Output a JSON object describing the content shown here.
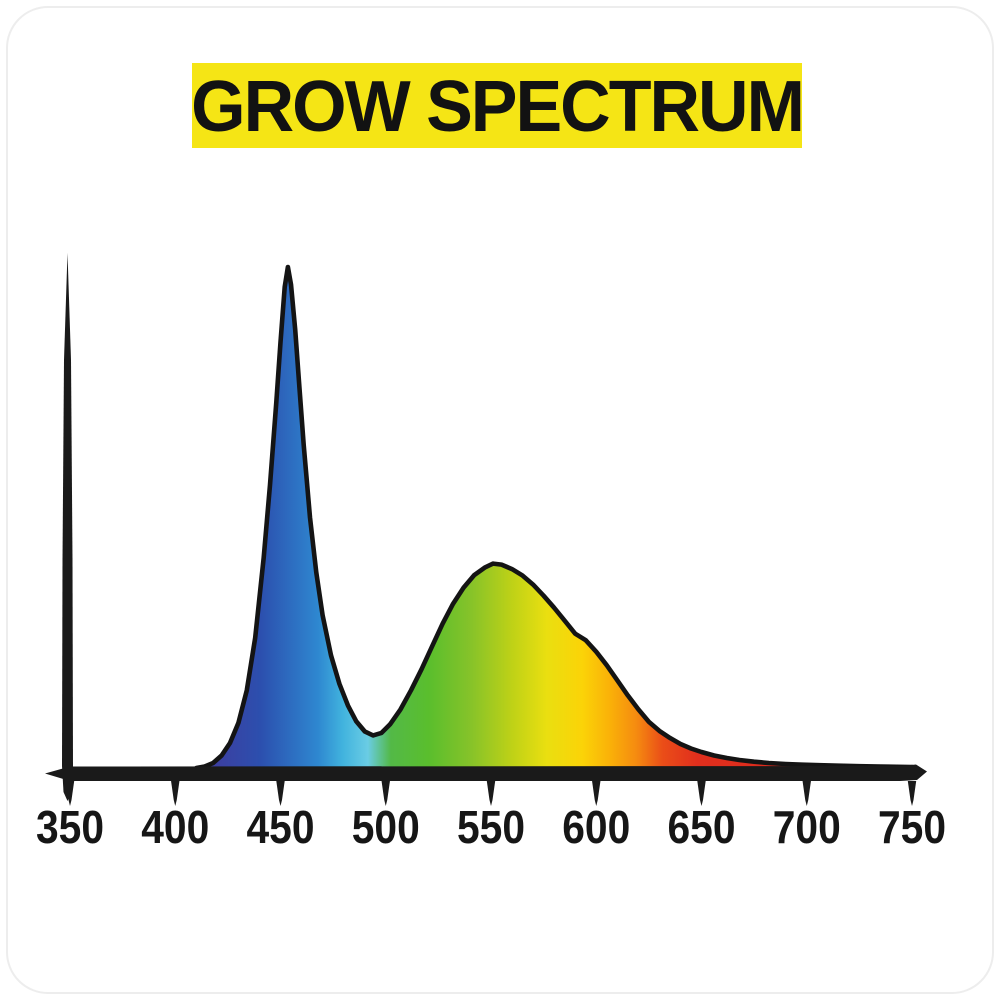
{
  "header": {
    "title": "GROW SPECTRUM",
    "banner_color": "#f5e515",
    "title_color": "#121212"
  },
  "chart_data": {
    "type": "area",
    "title": "GROW SPECTRUM",
    "x_axis_range": [
      350,
      750
    ],
    "x_ticks": [
      350,
      400,
      450,
      500,
      550,
      600,
      650,
      700,
      750
    ],
    "x_tick_labels": [
      "350",
      "400",
      "450",
      "500",
      "550",
      "600",
      "650",
      "700",
      "750"
    ],
    "ylim": [
      0,
      1.05
    ],
    "grid": false,
    "legend": false,
    "axis_color": "#1a1a1a",
    "outline_color": "#141414",
    "points": [
      [
        410,
        0.0
      ],
      [
        414,
        0.003
      ],
      [
        418,
        0.01
      ],
      [
        422,
        0.025
      ],
      [
        426,
        0.05
      ],
      [
        430,
        0.09
      ],
      [
        434,
        0.155
      ],
      [
        438,
        0.26
      ],
      [
        442,
        0.42
      ],
      [
        445,
        0.565
      ],
      [
        448,
        0.73
      ],
      [
        450,
        0.85
      ],
      [
        452,
        0.96
      ],
      [
        453.5,
        1.0
      ],
      [
        455,
        0.965
      ],
      [
        457,
        0.875
      ],
      [
        459,
        0.76
      ],
      [
        461,
        0.645
      ],
      [
        464,
        0.5
      ],
      [
        467,
        0.39
      ],
      [
        470,
        0.305
      ],
      [
        474,
        0.225
      ],
      [
        478,
        0.168
      ],
      [
        482,
        0.125
      ],
      [
        486,
        0.093
      ],
      [
        490,
        0.073
      ],
      [
        494,
        0.065
      ],
      [
        498,
        0.07
      ],
      [
        502,
        0.087
      ],
      [
        507,
        0.117
      ],
      [
        512,
        0.155
      ],
      [
        517,
        0.197
      ],
      [
        522,
        0.243
      ],
      [
        527,
        0.288
      ],
      [
        532,
        0.328
      ],
      [
        537,
        0.36
      ],
      [
        542,
        0.385
      ],
      [
        547,
        0.4
      ],
      [
        551,
        0.408
      ],
      [
        555,
        0.406
      ],
      [
        560,
        0.397
      ],
      [
        565,
        0.384
      ],
      [
        570,
        0.366
      ],
      [
        575,
        0.344
      ],
      [
        580,
        0.32
      ],
      [
        585,
        0.294
      ],
      [
        590,
        0.268
      ],
      [
        595,
        0.255
      ],
      [
        600,
        0.232
      ],
      [
        605,
        0.205
      ],
      [
        610,
        0.175
      ],
      [
        615,
        0.145
      ],
      [
        620,
        0.117
      ],
      [
        625,
        0.092
      ],
      [
        630,
        0.074
      ],
      [
        635,
        0.06
      ],
      [
        640,
        0.048
      ],
      [
        645,
        0.039
      ],
      [
        650,
        0.032
      ],
      [
        656,
        0.025
      ],
      [
        662,
        0.02
      ],
      [
        668,
        0.016
      ],
      [
        675,
        0.0125
      ],
      [
        682,
        0.01
      ],
      [
        690,
        0.008
      ],
      [
        698,
        0.0065
      ],
      [
        706,
        0.0055
      ],
      [
        715,
        0.0045
      ],
      [
        725,
        0.0035
      ],
      [
        735,
        0.0027
      ],
      [
        750,
        0.002
      ]
    ],
    "gradient_stops": [
      {
        "offset": 0.0,
        "color": "#43389b"
      },
      {
        "offset": 0.09,
        "color": "#2c4fae"
      },
      {
        "offset": 0.17,
        "color": "#2e87d0"
      },
      {
        "offset": 0.205,
        "color": "#41b3de"
      },
      {
        "offset": 0.24,
        "color": "#6acce4"
      },
      {
        "offset": 0.272,
        "color": "#53b947"
      },
      {
        "offset": 0.325,
        "color": "#5abe2d"
      },
      {
        "offset": 0.385,
        "color": "#87c329"
      },
      {
        "offset": 0.44,
        "color": "#bdd117"
      },
      {
        "offset": 0.49,
        "color": "#eadf10"
      },
      {
        "offset": 0.54,
        "color": "#fbd307"
      },
      {
        "offset": 0.578,
        "color": "#fab108"
      },
      {
        "offset": 0.615,
        "color": "#f58b10"
      },
      {
        "offset": 0.652,
        "color": "#ea4d18"
      },
      {
        "offset": 0.7,
        "color": "#e12f1d"
      },
      {
        "offset": 1.0,
        "color": "#d8261e"
      }
    ]
  }
}
